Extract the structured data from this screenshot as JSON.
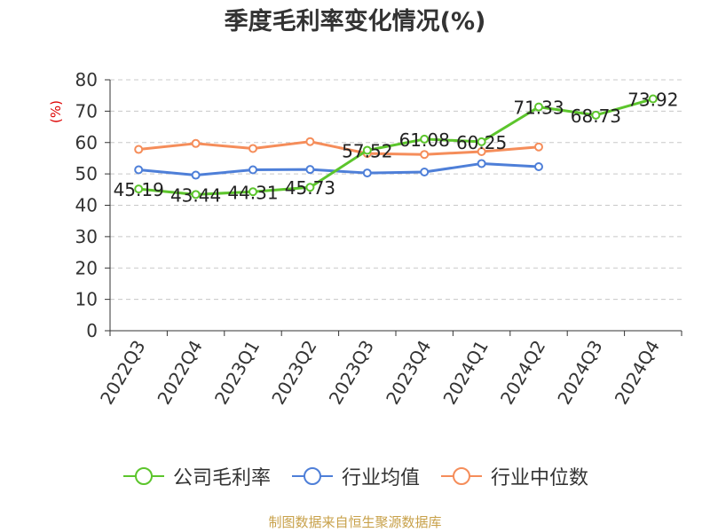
{
  "chart_data": {
    "type": "line",
    "title": "季度毛利率变化情况(%)",
    "ylabel": "(%)",
    "xlabel": "",
    "categories": [
      "2022Q3",
      "2022Q4",
      "2023Q1",
      "2023Q2",
      "2023Q3",
      "2023Q4",
      "2024Q1",
      "2024Q2",
      "2024Q3",
      "2024Q4"
    ],
    "ylim": [
      0,
      80
    ],
    "yticks": [
      "0",
      "10",
      "20",
      "30",
      "40",
      "50",
      "60",
      "70",
      "80"
    ],
    "grid": true,
    "legend_position": "bottom",
    "series": [
      {
        "name": "公司毛利率",
        "color": "#5cc52c",
        "labeled": true,
        "values": [
          45.19,
          43.44,
          44.31,
          45.73,
          57.52,
          61.08,
          60.25,
          71.33,
          68.73,
          73.92
        ],
        "labels": [
          "45.19",
          "43.44",
          "44.31",
          "45.73",
          "57.52",
          "61.08",
          "60.25",
          "71.33",
          "68.73",
          "73.92"
        ]
      },
      {
        "name": "行业均值",
        "color": "#4e7fd8",
        "labeled": false,
        "values": [
          51.3,
          49.6,
          51.3,
          51.4,
          50.3,
          50.6,
          53.3,
          52.3,
          null,
          null
        ]
      },
      {
        "name": "行业中位数",
        "color": "#f58d5a",
        "labeled": false,
        "values": [
          57.8,
          59.7,
          58.1,
          60.3,
          56.5,
          56.2,
          57.1,
          58.6,
          null,
          null
        ]
      }
    ]
  },
  "footer": {
    "source": "制图数据来自恒生聚源数据库"
  }
}
